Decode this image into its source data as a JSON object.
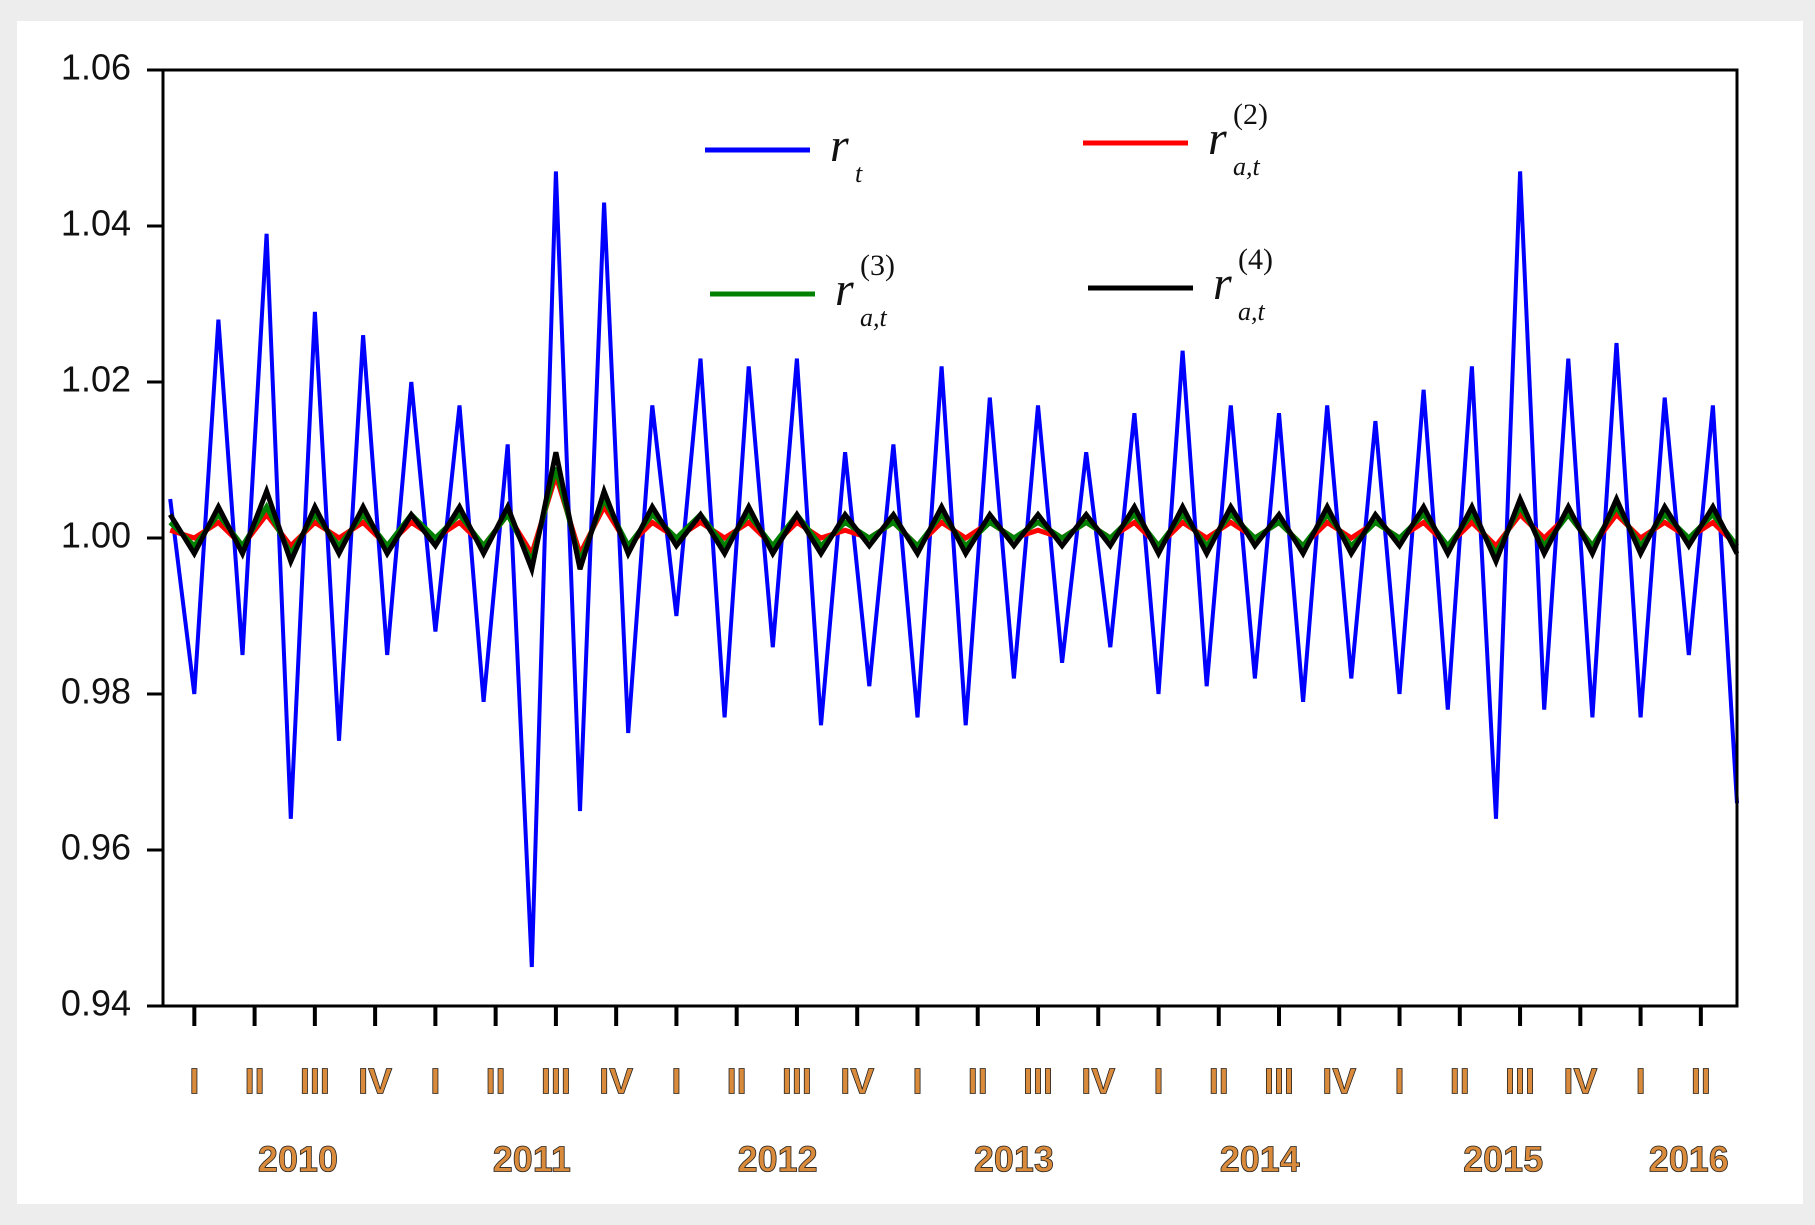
{
  "chart_data": {
    "type": "line",
    "x": [
      2009.9,
      2010.0,
      2010.1,
      2010.2,
      2010.3,
      2010.4,
      2010.5,
      2010.6,
      2010.7,
      2010.8,
      2010.9,
      2011.0,
      2011.1,
      2011.2,
      2011.3,
      2011.4,
      2011.5,
      2011.6,
      2011.7,
      2011.8,
      2011.9,
      2012.0,
      2012.1,
      2012.2,
      2012.3,
      2012.4,
      2012.5,
      2012.6,
      2012.7,
      2012.8,
      2012.9,
      2013.0,
      2013.1,
      2013.2,
      2013.3,
      2013.4,
      2013.5,
      2013.6,
      2013.7,
      2013.8,
      2013.9,
      2014.0,
      2014.1,
      2014.2,
      2014.3,
      2014.4,
      2014.5,
      2014.6,
      2014.7,
      2014.8,
      2014.9,
      2015.0,
      2015.1,
      2015.2,
      2015.3,
      2015.4,
      2015.5,
      2015.6,
      2015.7,
      2015.8,
      2015.9,
      2016.0,
      2016.1,
      2016.2,
      2016.3,
      2016.4
    ],
    "series": [
      {
        "name": "r",
        "name_sub": "t",
        "color": "#0000ff",
        "values": [
          1.005,
          0.98,
          1.028,
          0.985,
          1.039,
          0.964,
          1.029,
          0.974,
          1.026,
          0.985,
          1.02,
          0.988,
          1.017,
          0.979,
          1.012,
          0.945,
          1.047,
          0.965,
          1.043,
          0.975,
          1.017,
          0.99,
          1.023,
          0.977,
          1.022,
          0.986,
          1.023,
          0.976,
          1.011,
          0.981,
          1.012,
          0.977,
          1.022,
          0.976,
          1.018,
          0.982,
          1.017,
          0.984,
          1.011,
          0.986,
          1.016,
          0.98,
          1.024,
          0.981,
          1.017,
          0.982,
          1.016,
          0.979,
          1.017,
          0.982,
          1.015,
          0.98,
          1.019,
          0.978,
          1.022,
          0.964,
          1.047,
          0.978,
          1.023,
          0.977,
          1.025,
          0.977,
          1.018,
          0.985,
          1.017,
          0.966
        ]
      },
      {
        "name": "r",
        "name_sub": "a,t",
        "name_sup": "(2)",
        "color": "#ff0000",
        "values": [
          1.001,
          1.0,
          1.002,
          0.999,
          1.003,
          0.999,
          1.002,
          1.0,
          1.002,
          0.999,
          1.002,
          1.0,
          1.002,
          0.999,
          1.003,
          0.998,
          1.008,
          0.998,
          1.004,
          0.999,
          1.002,
          1.0,
          1.002,
          1.0,
          1.002,
          0.999,
          1.002,
          1.0,
          1.001,
          1.0,
          1.002,
          0.999,
          1.002,
          1.0,
          1.002,
          1.0,
          1.001,
          1.0,
          1.002,
          1.0,
          1.002,
          0.999,
          1.002,
          1.0,
          1.002,
          1.0,
          1.002,
          0.999,
          1.002,
          1.0,
          1.002,
          1.0,
          1.002,
          0.999,
          1.002,
          0.999,
          1.003,
          1.0,
          1.003,
          0.999,
          1.003,
          1.0,
          1.002,
          1.0,
          1.002,
          0.999
        ]
      },
      {
        "name": "r",
        "name_sub": "a,t",
        "name_sup": "(3)",
        "color": "#008000",
        "values": [
          1.002,
          0.999,
          1.003,
          0.999,
          1.004,
          0.998,
          1.003,
          0.999,
          1.003,
          0.999,
          1.003,
          1.0,
          1.003,
          0.999,
          1.003,
          0.997,
          1.009,
          0.997,
          1.005,
          0.999,
          1.003,
          1.0,
          1.003,
          0.999,
          1.003,
          0.999,
          1.003,
          0.999,
          1.002,
          1.0,
          1.002,
          0.999,
          1.003,
          0.999,
          1.002,
          1.0,
          1.002,
          1.0,
          1.002,
          1.0,
          1.003,
          0.999,
          1.003,
          0.999,
          1.003,
          1.0,
          1.002,
          0.999,
          1.003,
          0.999,
          1.002,
          1.0,
          1.003,
          0.999,
          1.003,
          0.998,
          1.004,
          0.999,
          1.003,
          0.999,
          1.004,
          0.999,
          1.003,
          1.0,
          1.003,
          0.999
        ]
      },
      {
        "name": "r",
        "name_sub": "a,t",
        "name_sup": "(4)",
        "color": "#000000",
        "values": [
          1.003,
          0.998,
          1.004,
          0.998,
          1.006,
          0.997,
          1.004,
          0.998,
          1.004,
          0.998,
          1.003,
          0.999,
          1.004,
          0.998,
          1.004,
          0.996,
          1.011,
          0.996,
          1.006,
          0.998,
          1.004,
          0.999,
          1.003,
          0.998,
          1.004,
          0.998,
          1.003,
          0.998,
          1.003,
          0.999,
          1.003,
          0.998,
          1.004,
          0.998,
          1.003,
          0.999,
          1.003,
          0.999,
          1.003,
          0.999,
          1.004,
          0.998,
          1.004,
          0.998,
          1.004,
          0.999,
          1.003,
          0.998,
          1.004,
          0.998,
          1.003,
          0.999,
          1.004,
          0.998,
          1.004,
          0.997,
          1.005,
          0.998,
          1.004,
          0.998,
          1.005,
          0.998,
          1.004,
          0.999,
          1.004,
          0.998
        ]
      }
    ],
    "xlim": [
      2009.87,
      2016.4
    ],
    "xticks": [
      {
        "value": 2010.0,
        "label": "I"
      },
      {
        "value": 2010.25,
        "label": "II"
      },
      {
        "value": 2010.5,
        "label": "III"
      },
      {
        "value": 2010.75,
        "label": "IV"
      },
      {
        "value": 2011.0,
        "label": "I"
      },
      {
        "value": 2011.25,
        "label": "II"
      },
      {
        "value": 2011.5,
        "label": "III"
      },
      {
        "value": 2011.75,
        "label": "IV"
      },
      {
        "value": 2012.0,
        "label": "I"
      },
      {
        "value": 2012.25,
        "label": "II"
      },
      {
        "value": 2012.5,
        "label": "III"
      },
      {
        "value": 2012.75,
        "label": "IV"
      },
      {
        "value": 2013.0,
        "label": "I"
      },
      {
        "value": 2013.25,
        "label": "II"
      },
      {
        "value": 2013.5,
        "label": "III"
      },
      {
        "value": 2013.75,
        "label": "IV"
      },
      {
        "value": 2014.0,
        "label": "I"
      },
      {
        "value": 2014.25,
        "label": "II"
      },
      {
        "value": 2014.5,
        "label": "III"
      },
      {
        "value": 2014.75,
        "label": "IV"
      },
      {
        "value": 2015.0,
        "label": "I"
      },
      {
        "value": 2015.25,
        "label": "II"
      },
      {
        "value": 2015.5,
        "label": "III"
      },
      {
        "value": 2015.75,
        "label": "IV"
      },
      {
        "value": 2016.0,
        "label": "I"
      },
      {
        "value": 2016.25,
        "label": "II"
      }
    ],
    "year_ticks": [
      {
        "value": 2010.43,
        "label": "2010"
      },
      {
        "value": 2011.4,
        "label": "2011"
      },
      {
        "value": 2012.42,
        "label": "2012"
      },
      {
        "value": 2013.4,
        "label": "2013"
      },
      {
        "value": 2014.42,
        "label": "2014"
      },
      {
        "value": 2015.43,
        "label": "2015"
      },
      {
        "value": 2016.2,
        "label": "2016"
      }
    ],
    "ylim": [
      0.94,
      1.06
    ],
    "yticks": [
      0.94,
      0.96,
      0.98,
      {
        "value": 1,
        "label": "1.00"
      },
      1.02,
      1.04,
      1.06
    ],
    "grid": false
  }
}
